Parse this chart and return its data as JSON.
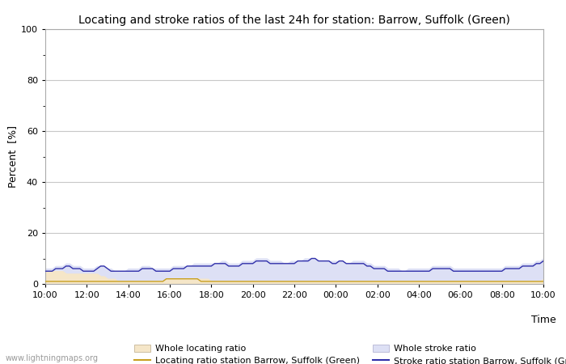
{
  "title": "Locating and stroke ratios of the last 24h for station: Barrow, Suffolk (Green)",
  "xlabel": "Time",
  "ylabel": "Percent  [%]",
  "xlim": [
    0,
    144
  ],
  "ylim": [
    0,
    100
  ],
  "yticks": [
    0,
    20,
    40,
    60,
    80,
    100
  ],
  "xtick_labels": [
    "10:00",
    "12:00",
    "14:00",
    "16:00",
    "18:00",
    "20:00",
    "22:00",
    "00:00",
    "02:00",
    "04:00",
    "06:00",
    "08:00",
    "10:00"
  ],
  "xtick_positions": [
    0,
    12,
    24,
    36,
    48,
    60,
    72,
    84,
    96,
    108,
    120,
    132,
    144
  ],
  "bg_color": "#ffffff",
  "plot_bg_color": "#ffffff",
  "grid_color": "#c8c8c8",
  "whole_locating_fill_color": "#f5e6c8",
  "whole_stroke_fill_color": "#dde0f5",
  "station_locating_color": "#c8a020",
  "station_stroke_color": "#3030aa",
  "watermark": "www.lightningmaps.org",
  "title_fontsize": 10,
  "axis_fontsize": 9,
  "tick_fontsize": 8,
  "legend_fontsize": 8,
  "whole_locating_ratio": [
    5,
    5,
    5,
    5,
    5,
    5,
    4,
    4,
    4,
    4,
    4,
    4,
    4,
    4,
    4,
    4,
    3,
    3,
    2,
    2,
    2,
    1,
    1,
    1,
    1,
    1,
    1,
    1,
    1,
    1,
    1,
    1,
    1,
    1,
    1,
    2,
    2,
    2,
    2,
    2,
    2,
    2,
    2,
    2,
    2,
    2,
    2,
    2,
    1,
    1,
    1,
    1,
    1,
    1,
    1,
    1,
    1,
    1,
    1,
    1,
    1,
    1,
    1,
    1,
    1,
    1,
    1,
    1,
    1,
    1,
    1,
    1,
    1,
    1,
    1,
    1,
    1,
    1,
    1,
    1,
    1,
    1,
    1,
    1,
    1,
    1,
    1,
    1,
    1,
    1,
    1,
    1,
    1,
    1,
    1,
    1,
    1,
    1,
    1,
    1,
    1,
    1,
    1,
    1,
    1,
    1,
    1,
    1,
    1,
    1,
    1,
    1,
    1,
    1,
    1,
    1,
    1,
    1,
    1,
    1,
    1,
    1,
    1,
    1,
    1,
    1,
    1,
    1,
    1,
    1,
    1,
    1,
    1,
    1,
    1,
    1,
    1,
    1,
    1,
    1,
    1,
    1,
    1,
    1,
    2
  ],
  "whole_stroke_ratio": [
    6,
    6,
    6,
    7,
    7,
    7,
    8,
    8,
    7,
    7,
    7,
    6,
    6,
    6,
    6,
    7,
    7,
    7,
    6,
    6,
    5,
    5,
    5,
    5,
    6,
    6,
    6,
    6,
    7,
    7,
    7,
    6,
    6,
    6,
    6,
    6,
    6,
    7,
    7,
    7,
    7,
    7,
    7,
    8,
    8,
    8,
    8,
    8,
    8,
    8,
    8,
    9,
    9,
    8,
    8,
    8,
    8,
    9,
    9,
    9,
    9,
    10,
    10,
    10,
    10,
    9,
    9,
    9,
    9,
    8,
    8,
    9,
    9,
    9,
    9,
    10,
    10,
    10,
    10,
    9,
    9,
    9,
    9,
    9,
    9,
    9,
    9,
    8,
    8,
    9,
    9,
    9,
    9,
    8,
    8,
    7,
    7,
    7,
    7,
    6,
    6,
    6,
    6,
    5,
    5,
    6,
    6,
    6,
    6,
    6,
    6,
    6,
    7,
    7,
    7,
    7,
    7,
    7,
    6,
    6,
    6,
    6,
    6,
    6,
    6,
    6,
    6,
    6,
    6,
    6,
    6,
    6,
    6,
    7,
    7,
    7,
    7,
    7,
    8,
    8,
    8,
    8,
    9,
    9,
    10
  ],
  "station_locating": [
    1,
    1,
    1,
    1,
    1,
    1,
    1,
    1,
    1,
    1,
    1,
    1,
    1,
    1,
    1,
    1,
    1,
    1,
    1,
    1,
    1,
    1,
    1,
    1,
    1,
    1,
    1,
    1,
    1,
    1,
    1,
    1,
    1,
    1,
    1,
    2,
    2,
    2,
    2,
    2,
    2,
    2,
    2,
    2,
    2,
    1,
    1,
    1,
    1,
    1,
    1,
    1,
    1,
    1,
    1,
    1,
    1,
    1,
    1,
    1,
    1,
    1,
    1,
    1,
    1,
    1,
    1,
    1,
    1,
    1,
    1,
    1,
    1,
    1,
    1,
    1,
    1,
    1,
    1,
    1,
    1,
    1,
    1,
    1,
    1,
    1,
    1,
    1,
    1,
    1,
    1,
    1,
    1,
    1,
    1,
    1,
    1,
    1,
    1,
    1,
    1,
    1,
    1,
    1,
    1,
    1,
    1,
    1,
    1,
    1,
    1,
    1,
    1,
    1,
    1,
    1,
    1,
    1,
    1,
    1,
    1,
    1,
    1,
    1,
    1,
    1,
    1,
    1,
    1,
    1,
    1,
    1,
    1,
    1,
    1,
    1,
    1,
    1,
    1,
    1,
    1,
    1,
    1,
    1,
    1
  ],
  "station_stroke": [
    5,
    5,
    5,
    6,
    6,
    6,
    7,
    7,
    6,
    6,
    6,
    5,
    5,
    5,
    5,
    6,
    7,
    7,
    6,
    5,
    5,
    5,
    5,
    5,
    5,
    5,
    5,
    5,
    6,
    6,
    6,
    6,
    5,
    5,
    5,
    5,
    5,
    6,
    6,
    6,
    6,
    7,
    7,
    7,
    7,
    7,
    7,
    7,
    7,
    8,
    8,
    8,
    8,
    7,
    7,
    7,
    7,
    8,
    8,
    8,
    8,
    9,
    9,
    9,
    9,
    8,
    8,
    8,
    8,
    8,
    8,
    8,
    8,
    9,
    9,
    9,
    9,
    10,
    10,
    9,
    9,
    9,
    9,
    8,
    8,
    9,
    9,
    8,
    8,
    8,
    8,
    8,
    8,
    7,
    7,
    6,
    6,
    6,
    6,
    5,
    5,
    5,
    5,
    5,
    5,
    5,
    5,
    5,
    5,
    5,
    5,
    5,
    6,
    6,
    6,
    6,
    6,
    6,
    5,
    5,
    5,
    5,
    5,
    5,
    5,
    5,
    5,
    5,
    5,
    5,
    5,
    5,
    5,
    6,
    6,
    6,
    6,
    6,
    7,
    7,
    7,
    7,
    8,
    8,
    9
  ]
}
